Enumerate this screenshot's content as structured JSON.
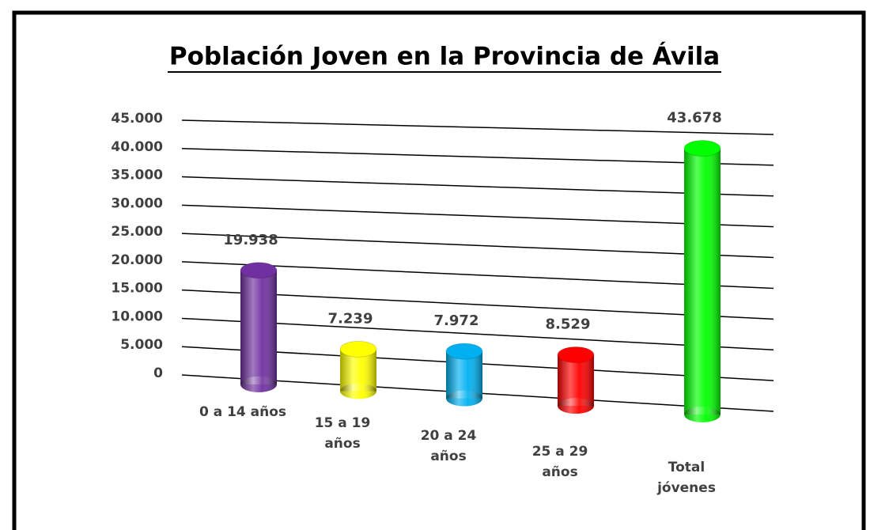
{
  "chart_data": {
    "type": "bar3d",
    "title": "Población Joven en la Provincia de Ávila",
    "categories": [
      "0 a 14 años",
      "15 a 19 años",
      "20 a 24 años",
      "25 a 29 años",
      "Total jóvenes"
    ],
    "values": [
      19938,
      7239,
      7972,
      8529,
      43678
    ],
    "value_labels": [
      "19.938",
      "7.239",
      "7.972",
      "8.529",
      "43.678"
    ],
    "colors": [
      "#7030a0",
      "#ffff00",
      "#00b0f0",
      "#ff0000",
      "#00ff00"
    ],
    "ylim": [
      0,
      45000
    ],
    "yticks": [
      0,
      {
        "value": 5000,
        "label": "5.000"
      },
      {
        "value": 10000,
        "label": "10.000"
      },
      {
        "value": 15000,
        "label": "15.000"
      },
      {
        "value": 20000,
        "label": "20.000"
      },
      {
        "value": 25000,
        "label": "25.000"
      },
      {
        "value": 30000,
        "label": "30.000"
      },
      {
        "value": 35000,
        "label": "35.000"
      },
      {
        "value": 40000,
        "label": "40.000"
      },
      {
        "value": 45000,
        "label": "45.000"
      }
    ],
    "grid": true
  }
}
